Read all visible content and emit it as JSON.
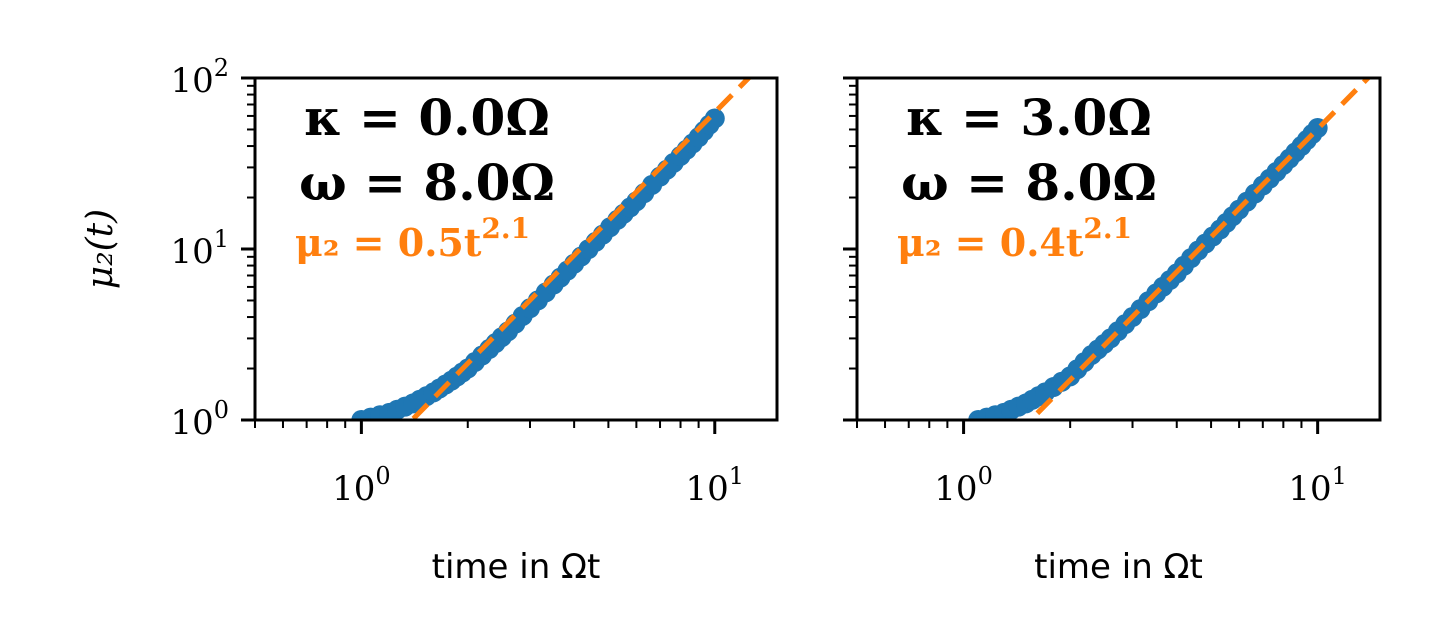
{
  "chart_data": [
    {
      "type": "scatter",
      "xscale": "log",
      "yscale": "log",
      "xlim": [
        0.5,
        15
      ],
      "ylim": [
        1,
        100
      ],
      "ylabel": "μ₂(t)",
      "xlabel": "time in Ωt",
      "xticks": [
        {
          "value": 1,
          "base": "10",
          "exp": "0"
        },
        {
          "value": 10,
          "base": "10",
          "exp": "1"
        }
      ],
      "yticks": [
        {
          "value": 1,
          "base": "10",
          "exp": "0"
        },
        {
          "value": 10,
          "base": "10",
          "exp": "1"
        },
        {
          "value": 100,
          "base": "10",
          "exp": "2"
        }
      ],
      "annotations": {
        "kappa": "κ = 0.0Ω",
        "omega": "ω = 8.0Ω",
        "fit": "μ₂ = 0.5t",
        "fit_exp": "2.1"
      },
      "fit": {
        "a": 0.5,
        "b": 2.1,
        "color": "#ff7f0e"
      },
      "series": [
        {
          "color": "#1f77b4",
          "x": [
            1.0,
            1.2,
            1.4,
            1.6,
            1.8,
            2.0,
            2.3,
            2.6,
            3.0,
            3.5,
            4.0,
            4.6,
            5.3,
            6.0,
            7.0,
            8.0,
            9.0,
            10.0
          ],
          "y": [
            1.0,
            1.1,
            1.25,
            1.45,
            1.7,
            2.0,
            2.6,
            3.3,
            4.5,
            6.2,
            8.2,
            11.0,
            14.8,
            19.0,
            26.5,
            35.0,
            45.0,
            58.0
          ]
        }
      ]
    },
    {
      "type": "scatter",
      "xscale": "log",
      "yscale": "log",
      "xlim": [
        0.5,
        15
      ],
      "ylim": [
        1,
        100
      ],
      "xlabel": "time in Ωt",
      "xticks": [
        {
          "value": 1,
          "base": "10",
          "exp": "0"
        },
        {
          "value": 10,
          "base": "10",
          "exp": "1"
        }
      ],
      "annotations": {
        "kappa": "κ = 3.0Ω",
        "omega": "ω = 8.0Ω",
        "fit": "μ₂ = 0.4t",
        "fit_exp": "2.1"
      },
      "fit": {
        "a": 0.4,
        "b": 2.1,
        "color": "#ff7f0e"
      },
      "series": [
        {
          "color": "#1f77b4",
          "x": [
            1.1,
            1.3,
            1.5,
            1.7,
            2.0,
            2.3,
            2.6,
            3.0,
            3.5,
            4.0,
            4.6,
            5.3,
            6.0,
            7.0,
            8.0,
            9.0,
            10.0
          ],
          "y": [
            1.0,
            1.1,
            1.25,
            1.45,
            1.8,
            2.4,
            3.0,
            4.0,
            5.5,
            7.2,
            9.8,
            13.0,
            17.0,
            23.5,
            31.0,
            40.0,
            51.0
          ]
        }
      ]
    }
  ]
}
